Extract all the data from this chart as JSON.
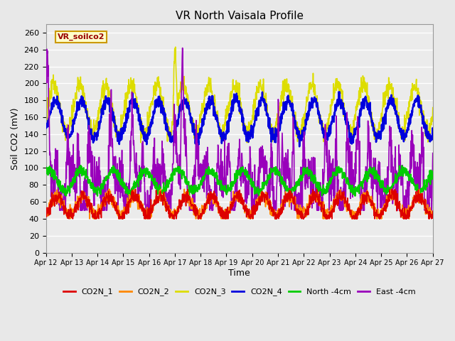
{
  "title": "VR North Vaisala Profile",
  "ylabel": "Soil CO2 (mV)",
  "xlabel": "Time",
  "annotation": "VR_soilco2",
  "ylim": [
    0,
    270
  ],
  "yticks": [
    0,
    20,
    40,
    60,
    80,
    100,
    120,
    140,
    160,
    180,
    200,
    220,
    240,
    260
  ],
  "xtick_labels": [
    "Apr 12",
    "Apr 13",
    "Apr 14",
    "Apr 15",
    "Apr 16",
    "Apr 17",
    "Apr 18",
    "Apr 19",
    "Apr 20",
    "Apr 21",
    "Apr 22",
    "Apr 23",
    "Apr 24",
    "Apr 25",
    "Apr 26",
    "Apr 27"
  ],
  "n_days": 15,
  "fig_bg": "#e8e8e8",
  "plot_bg": "#ebebeb",
  "grid_color": "#ffffff",
  "series": {
    "CO2N_1": {
      "color": "#dd0000",
      "lw": 1.2
    },
    "CO2N_2": {
      "color": "#ff8800",
      "lw": 1.2
    },
    "CO2N_3": {
      "color": "#dddd00",
      "lw": 1.2
    },
    "CO2N_4": {
      "color": "#0000dd",
      "lw": 1.8
    },
    "North -4cm": {
      "color": "#00cc00",
      "lw": 1.5
    },
    "East -4cm": {
      "color": "#9900bb",
      "lw": 1.2
    }
  },
  "annotation_color": "#990000",
  "annotation_bg": "#ffffcc",
  "annotation_edge": "#cc9900"
}
